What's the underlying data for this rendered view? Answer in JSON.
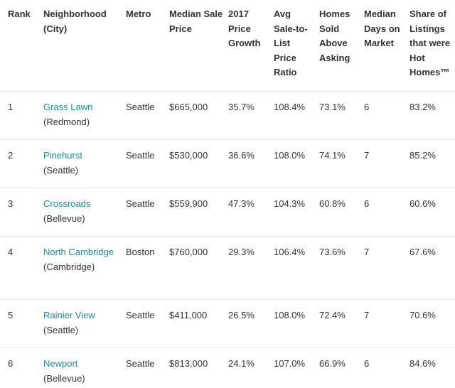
{
  "headers": {
    "rank": "Rank",
    "neighborhood": "Neighborhood (City)",
    "metro": "Metro",
    "median_sale_price": "Median Sale Price",
    "price_growth": "2017 Price Growth",
    "sale_to_list": "Avg Sale-to-List Price Ratio",
    "homes_sold_above": "Homes Sold Above Asking",
    "median_days": "Median Days on Market",
    "share_hot": "Share of Listings that were Hot Homes™"
  },
  "colors": {
    "link": "#1f8a99",
    "text": "#333333",
    "divider": "#e3e3e3"
  },
  "rows": [
    {
      "rank": "1",
      "neighborhood": "Grass Lawn",
      "city": "(Redmond)",
      "metro": "Seattle",
      "price": "$665,000",
      "growth": "35.7%",
      "ratio": "108.4%",
      "above": "73.1%",
      "days": "6",
      "hot": "83.2%"
    },
    {
      "rank": "2",
      "neighborhood": "Pinehurst",
      "city": "(Seattle)",
      "metro": "Seattle",
      "price": "$530,000",
      "growth": "36.6%",
      "ratio": "108.0%",
      "above": "74.1%",
      "days": "7",
      "hot": "85.2%"
    },
    {
      "rank": "3",
      "neighborhood": "Crossroads",
      "city": "(Bellevue)",
      "metro": "Seattle",
      "price": "$559,900",
      "growth": "47.3%",
      "ratio": "104.3%",
      "above": "60.8%",
      "days": "6",
      "hot": "60.6%"
    },
    {
      "rank": "4",
      "neighborhood": "North Cambridge",
      "city": "(Cambridge)",
      "metro": "Boston",
      "price": "$760,000",
      "growth": "29.3%",
      "ratio": "106.4%",
      "above": "73.6%",
      "days": "7",
      "hot": "67.6%"
    },
    {
      "rank": "5",
      "neighborhood": "Rainier View",
      "city": "(Seattle)",
      "metro": "Seattle",
      "price": "$411,000",
      "growth": "26.5%",
      "ratio": "108.0%",
      "above": "72.4%",
      "days": "7",
      "hot": "70.6%"
    },
    {
      "rank": "6",
      "neighborhood": "Newport",
      "city": "(Bellevue)",
      "metro": "Seattle",
      "price": "$813,000",
      "growth": "24.1%",
      "ratio": "107.0%",
      "above": "66.9%",
      "days": "6",
      "hot": "84.6%"
    }
  ]
}
